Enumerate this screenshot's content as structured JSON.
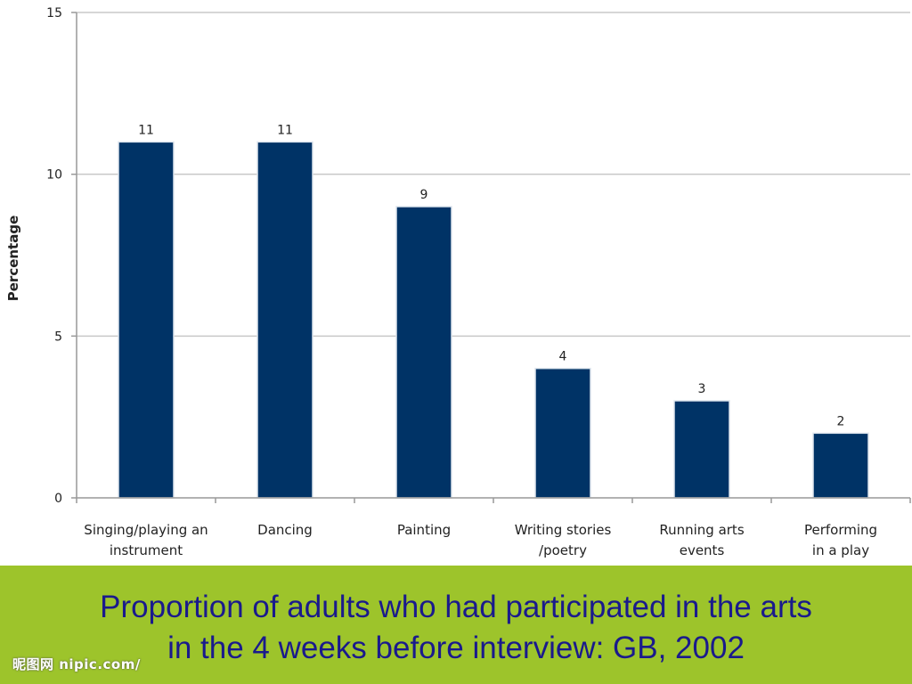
{
  "chart_data": {
    "type": "bar",
    "categories": [
      [
        "Singing/playing an",
        "instrument"
      ],
      [
        "Dancing"
      ],
      [
        "Painting"
      ],
      [
        "Writing stories",
        "/poetry"
      ],
      [
        "Running arts",
        "events"
      ],
      [
        "Performing",
        "in a play"
      ]
    ],
    "values": [
      11,
      11,
      9,
      4,
      3,
      2
    ],
    "data_labels": [
      "11",
      "11",
      "9",
      "4",
      "3",
      "2"
    ],
    "ylabel": "Percentage",
    "ylim": [
      0,
      15
    ],
    "yticks": [
      0,
      5,
      10,
      15
    ],
    "grid": true,
    "bar_color": "#003366"
  },
  "caption": {
    "line1": "Proportion of adults who had participated in the arts",
    "line2": "in the 4 weeks before interview: GB, 2002",
    "color": "#1a1a8c",
    "background": "#9dc42b"
  },
  "watermark": "昵图网 nipic.com/"
}
